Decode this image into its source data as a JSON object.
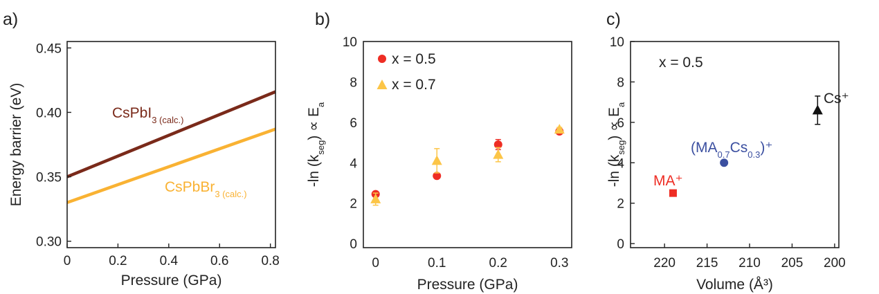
{
  "chart_data": [
    {
      "panel": "a)",
      "type": "line",
      "xlabel": "Pressure (GPa)",
      "ylabel": "Energy barrier (eV)",
      "xlim": [
        0,
        0.82
      ],
      "ylim": [
        0.295,
        0.455
      ],
      "xticks": [
        "0",
        "0.2",
        "0.4",
        "0.6",
        "0.8"
      ],
      "yticks": [
        "0.30",
        "0.35",
        "0.40",
        "0.45"
      ],
      "series": [
        {
          "label_main": "CsPbI",
          "label_sub": "3 (calc.)",
          "color": "#7a2a1a",
          "x": [
            0,
            0.82
          ],
          "y": [
            0.35,
            0.416
          ]
        },
        {
          "label_main": "CsPbBr",
          "label_sub": "3 (calc.)",
          "color": "#f9b233",
          "x": [
            0,
            0.82
          ],
          "y": [
            0.33,
            0.387
          ]
        }
      ]
    },
    {
      "panel": "b)",
      "type": "scatter",
      "xlabel": "Pressure (GPa)",
      "ylabel_main": "-ln (k",
      "ylabel_sub": "seg",
      "ylabel_tail": ") ∝ E",
      "ylabel_sub2": "a",
      "xlim": [
        -0.02,
        0.32
      ],
      "ylim": [
        -0.2,
        10
      ],
      "xticks": [
        "0",
        "0.1",
        "0.2",
        "0.3"
      ],
      "yticks": [
        "0",
        "2",
        "4",
        "6",
        "8",
        "10"
      ],
      "series": [
        {
          "name": "x = 0.5",
          "marker": "circle",
          "color": "#ee2d24",
          "x": [
            0,
            0.1,
            0.2,
            0.3
          ],
          "y": [
            2.45,
            3.35,
            4.9,
            5.55
          ],
          "err": [
            0.1,
            0.1,
            0.25,
            0.1
          ]
        },
        {
          "name": "x = 0.7",
          "marker": "triangle",
          "color": "#fcc547",
          "x": [
            0,
            0.1,
            0.2,
            0.3
          ],
          "y": [
            2.2,
            4.1,
            4.4,
            5.65
          ],
          "err": [
            0.3,
            0.6,
            0.35,
            0.1
          ]
        }
      ]
    },
    {
      "panel": "c)",
      "type": "scatter",
      "xlabel": "Volume (Å³)",
      "ylabel_main": "-ln (k",
      "ylabel_sub": "seg",
      "ylabel_tail": ") ∝ E",
      "ylabel_sub2": "a",
      "annotation": "x = 0.5",
      "xlim": [
        224,
        199.5
      ],
      "ylim": [
        -0.2,
        10
      ],
      "xticks": [
        "220",
        "215",
        "210",
        "205",
        "200"
      ],
      "yticks": [
        "0",
        "2",
        "4",
        "6",
        "8",
        "10"
      ],
      "points": [
        {
          "label": "MA⁺",
          "marker": "square",
          "color": "#ee2d24",
          "x": 219,
          "y": 2.5,
          "err": 0
        },
        {
          "label_main": "(MA",
          "label_sub1": "0.7",
          "label_mid": "Cs",
          "label_sub2": "0.3",
          "label_tail": ")⁺",
          "marker": "circle",
          "color": "#3b4fa0",
          "x": 213,
          "y": 4.0,
          "err": 0
        },
        {
          "label": "Cs⁺",
          "marker": "triangle",
          "color": "#111111",
          "x": 202,
          "y": 6.6,
          "err": 0.7
        }
      ]
    }
  ]
}
